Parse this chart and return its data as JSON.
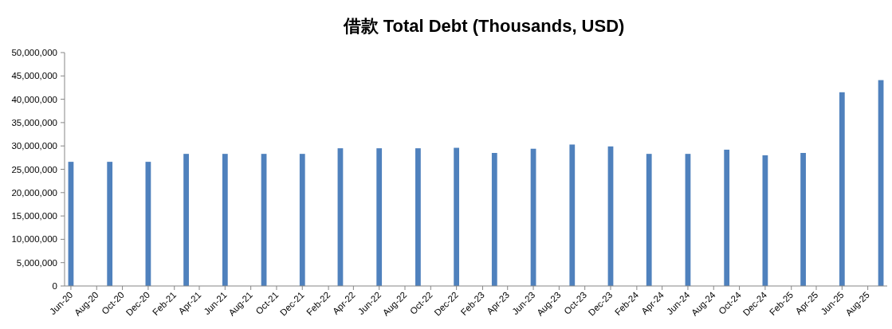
{
  "chart_data": {
    "type": "bar",
    "title": "借款 Total Debt (Thousands, USD)",
    "x": [
      "2020-06",
      "2020-09",
      "2020-12",
      "2021-03",
      "2021-06",
      "2021-09",
      "2021-12",
      "2022-03",
      "2022-06",
      "2022-09",
      "2022-12",
      "2023-03",
      "2023-06",
      "2023-09",
      "2023-12",
      "2024-03",
      "2024-06",
      "2024-09",
      "2024-12",
      "2025-03",
      "2025-06",
      "2025-09"
    ],
    "values": [
      26600000,
      26600000,
      26600000,
      28300000,
      28300000,
      28300000,
      28300000,
      29500000,
      29500000,
      29500000,
      29600000,
      28500000,
      29400000,
      30300000,
      29900000,
      28300000,
      28300000,
      29200000,
      28000000,
      28500000,
      41500000,
      44100000
    ],
    "color": "#4f81bd",
    "xlim": [
      "2020-05-17",
      "2025-09-16"
    ],
    "xticks": [
      {
        "value": "2020-06",
        "label": "Jun-20"
      },
      {
        "value": "2020-08",
        "label": "Aug-20"
      },
      {
        "value": "2020-10",
        "label": "Oct-20"
      },
      {
        "value": "2020-12",
        "label": "Dec-20"
      },
      {
        "value": "2021-02",
        "label": "Feb-21"
      },
      {
        "value": "2021-04",
        "label": "Apr-21"
      },
      {
        "value": "2021-06",
        "label": "Jun-21"
      },
      {
        "value": "2021-08",
        "label": "Aug-21"
      },
      {
        "value": "2021-10",
        "label": "Oct-21"
      },
      {
        "value": "2021-12",
        "label": "Dec-21"
      },
      {
        "value": "2022-02",
        "label": "Feb-22"
      },
      {
        "value": "2022-04",
        "label": "Apr-22"
      },
      {
        "value": "2022-06",
        "label": "Jun-22"
      },
      {
        "value": "2022-08",
        "label": "Aug-22"
      },
      {
        "value": "2022-10",
        "label": "Oct-22"
      },
      {
        "value": "2022-12",
        "label": "Dec-22"
      },
      {
        "value": "2023-02",
        "label": "Feb-23"
      },
      {
        "value": "2023-04",
        "label": "Apr-23"
      },
      {
        "value": "2023-06",
        "label": "Jun-23"
      },
      {
        "value": "2023-08",
        "label": "Aug-23"
      },
      {
        "value": "2023-10",
        "label": "Oct-23"
      },
      {
        "value": "2023-12",
        "label": "Dec-23"
      },
      {
        "value": "2024-02",
        "label": "Feb-24"
      },
      {
        "value": "2024-04",
        "label": "Apr-24"
      },
      {
        "value": "2024-06",
        "label": "Jun-24"
      },
      {
        "value": "2024-08",
        "label": "Aug-24"
      },
      {
        "value": "2024-10",
        "label": "Oct-24"
      },
      {
        "value": "2024-12",
        "label": "Dec-24"
      },
      {
        "value": "2025-02",
        "label": "Feb-25"
      },
      {
        "value": "2025-04",
        "label": "Apr-25"
      },
      {
        "value": "2025-06",
        "label": "Jun-25"
      },
      {
        "value": "2025-08",
        "label": "Aug-25"
      }
    ],
    "ylim": [
      0,
      50000000
    ],
    "yticks": [
      {
        "value": 0,
        "label": "0"
      },
      {
        "value": 5000000,
        "label": "5,000,000"
      },
      {
        "value": 10000000,
        "label": "10,000,000"
      },
      {
        "value": 15000000,
        "label": "15,000,000"
      },
      {
        "value": 20000000,
        "label": "20,000,000"
      },
      {
        "value": 25000000,
        "label": "25,000,000"
      },
      {
        "value": 30000000,
        "label": "30,000,000"
      },
      {
        "value": 35000000,
        "label": "35,000,000"
      },
      {
        "value": 40000000,
        "label": "40,000,000"
      },
      {
        "value": 45000000,
        "label": "45,000,000"
      },
      {
        "value": 50000000,
        "label": "50,000,000"
      }
    ]
  }
}
